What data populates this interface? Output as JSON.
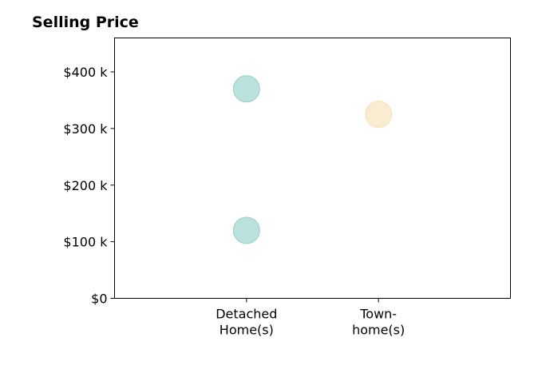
{
  "chart_data": {
    "type": "scatter",
    "title": "Selling Price",
    "xlabel": "",
    "ylabel": "",
    "categories": [
      [
        "Detached",
        "Home(s)"
      ],
      [
        "Town-",
        "home(s)"
      ]
    ],
    "x_range": [
      -1,
      2
    ],
    "ylim": [
      0,
      460000
    ],
    "y_ticks": [
      {
        "value": 0,
        "label": "$0"
      },
      {
        "value": 100000,
        "label": "$100 k"
      },
      {
        "value": 200000,
        "label": "$200 k"
      },
      {
        "value": 300000,
        "label": "$300 k"
      },
      {
        "value": 400000,
        "label": "$400 k"
      }
    ],
    "series": [
      {
        "color": "#8ecdc6",
        "points": [
          {
            "category_index": 0,
            "y": 370000
          },
          {
            "category_index": 0,
            "y": 120000
          }
        ]
      },
      {
        "color": "#f5dfb0",
        "points": [
          {
            "category_index": 1,
            "y": 325000
          }
        ]
      }
    ],
    "grid": false,
    "legend": "none"
  }
}
